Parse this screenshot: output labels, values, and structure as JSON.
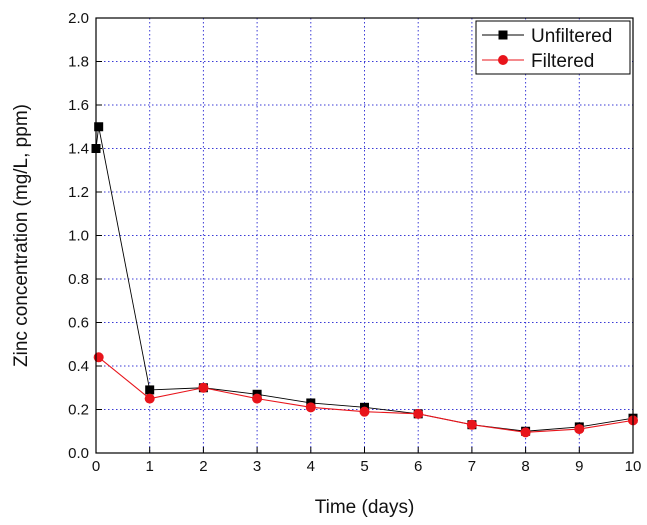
{
  "chart_data": {
    "type": "line",
    "title": "",
    "xlabel": "Time (days)",
    "ylabel": "Zinc concentration (mg/L, ppm)",
    "xlim": [
      0,
      10
    ],
    "ylim": [
      0,
      2.0
    ],
    "xticks": [
      "0",
      "1",
      "2",
      "3",
      "4",
      "5",
      "6",
      "7",
      "8",
      "9",
      "10"
    ],
    "yticks": [
      "0.0",
      "0.2",
      "0.4",
      "0.6",
      "0.8",
      "1.0",
      "1.2",
      "1.4",
      "1.6",
      "1.8",
      "2.0"
    ],
    "grid": true,
    "legend_position": "top-right",
    "series": [
      {
        "name": "Unfiltered",
        "color": "#000000",
        "marker": "square",
        "x": [
          0,
          0.05,
          1,
          2,
          3,
          4,
          5,
          6,
          7,
          8,
          9,
          10
        ],
        "y": [
          1.4,
          1.5,
          0.29,
          0.3,
          0.27,
          0.23,
          0.21,
          0.18,
          0.13,
          0.1,
          0.12,
          0.16
        ]
      },
      {
        "name": "Filtered",
        "color": "#e8141b",
        "marker": "circle",
        "x": [
          0.05,
          1,
          2,
          3,
          4,
          5,
          6,
          7,
          8,
          9,
          10
        ],
        "y": [
          0.44,
          0.25,
          0.3,
          0.25,
          0.21,
          0.19,
          0.18,
          0.13,
          0.095,
          0.11,
          0.15
        ]
      }
    ]
  }
}
